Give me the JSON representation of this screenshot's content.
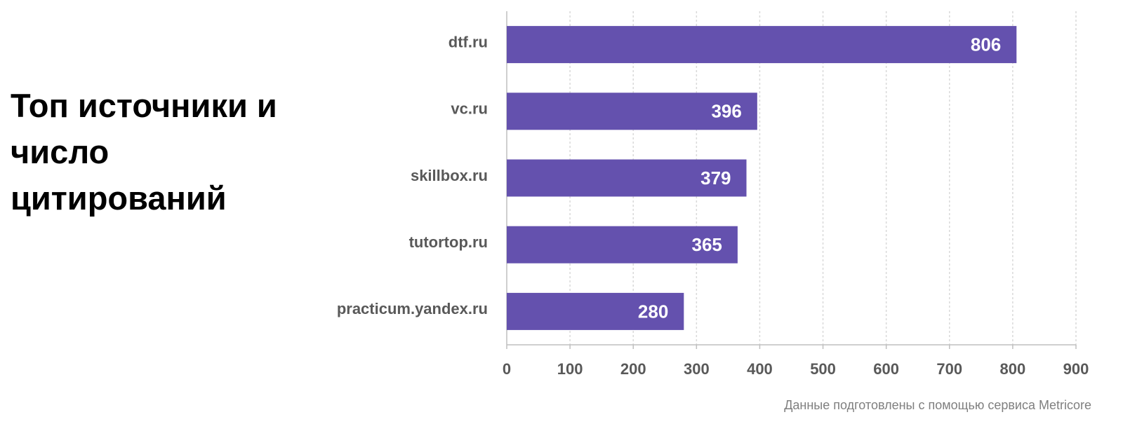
{
  "chart_data": {
    "type": "bar",
    "orientation": "horizontal",
    "title": "Топ источники и число цитирований",
    "categories": [
      "dtf.ru",
      "vc.ru",
      "skillbox.ru",
      "tutortop.ru",
      "practicum.yandex.ru"
    ],
    "values": [
      806,
      396,
      379,
      365,
      280
    ],
    "color": "#6451ae",
    "xlim": [
      0,
      900
    ],
    "xticks": [
      0,
      100,
      200,
      300,
      400,
      500,
      600,
      700,
      800,
      900
    ],
    "grid": true,
    "source": "Данные подготовлены с помощью сервиса Metricore"
  }
}
